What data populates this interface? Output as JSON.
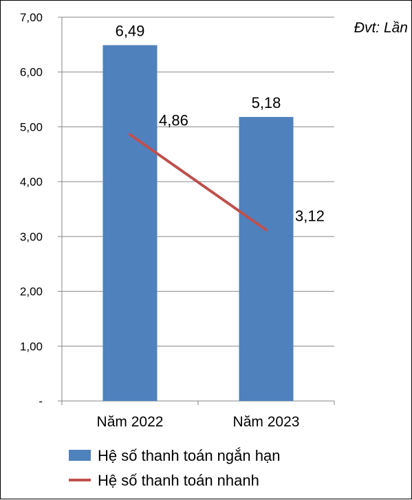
{
  "chart_data": {
    "type": "bar",
    "unit_note": "Đvt: Lần",
    "categories": [
      "Năm 2022",
      "Năm 2023"
    ],
    "y_tick_labels": [
      "-",
      "1,00",
      "2,00",
      "3,00",
      "4,00",
      "5,00",
      "6,00",
      "7,00"
    ],
    "ylim": [
      0,
      7
    ],
    "grid": true,
    "legend_position": "bottom",
    "series": [
      {
        "name": "Hệ số thanh toán ngắn hạn",
        "kind": "bar",
        "color": "#4f81bd",
        "values": [
          6.49,
          5.18
        ],
        "labels": [
          "6,49",
          "5,18"
        ]
      },
      {
        "name": "Hệ số thanh toán nhanh",
        "kind": "line",
        "color": "#c0504d",
        "values": [
          4.86,
          3.12
        ],
        "labels": [
          "4,86",
          "3,12"
        ]
      }
    ]
  }
}
